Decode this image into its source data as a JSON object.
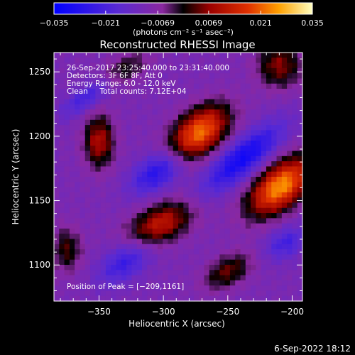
{
  "chart_data": {
    "type": "heatmap",
    "title": "Reconstructed RHESSI Image",
    "xlabel": "Heliocentric X (arcsec)",
    "ylabel": "Heliocentric Y (arcsec)",
    "xlim": [
      -385,
      -192
    ],
    "ylim": [
      1072,
      1265
    ],
    "xticks": [
      -350,
      -300,
      -250,
      -200
    ],
    "yticks": [
      1100,
      1150,
      1200,
      1250
    ],
    "xtick_labels": [
      "−350",
      "−300",
      "−250",
      "−200"
    ],
    "ytick_labels": [
      "1100",
      "1150",
      "1200",
      "1250"
    ],
    "colorbar": {
      "range": [
        -0.035,
        0.035
      ],
      "ticks": [
        -0.035,
        -0.021,
        -0.0069,
        0.0069,
        0.021,
        0.035
      ],
      "tick_labels": [
        "−0.035",
        "−0.021",
        "−0.0069",
        "0.0069",
        "0.021",
        "0.035"
      ],
      "units": "(photons cm⁻² s⁻¹ asec⁻²)"
    },
    "annotations": [
      "26-Sep-2017 23:25:40.000 to 23:31:40.000",
      "Detectors: 3F 6F 8F, Att 0",
      "Energy Range: 6.0 - 12.0 keV",
      "Clean     Total counts: 7.12E+04",
      "Position of Peak = [−209,1161]"
    ],
    "timestamp": "6-Sep-2022 18:12",
    "grid_resolution": 48,
    "sources": [
      {
        "x": -209,
        "y": 1161,
        "amp": 1.0,
        "sx": 20,
        "sy": 11,
        "angle_deg": 40
      },
      {
        "x": -272,
        "y": 1203,
        "amp": 0.92,
        "sx": 18,
        "sy": 11,
        "angle_deg": 40
      },
      {
        "x": -302,
        "y": 1132,
        "amp": 0.62,
        "sx": 18,
        "sy": 10,
        "angle_deg": 25
      },
      {
        "x": -350,
        "y": 1196,
        "amp": 0.55,
        "sx": 8,
        "sy": 14,
        "angle_deg": 0
      },
      {
        "x": -250,
        "y": 1095,
        "amp": 0.4,
        "sx": 14,
        "sy": 8,
        "angle_deg": 30
      },
      {
        "x": -330,
        "y": 1252,
        "amp": 0.3,
        "sx": 14,
        "sy": 7,
        "angle_deg": 30
      },
      {
        "x": -210,
        "y": 1255,
        "amp": 0.45,
        "sx": 12,
        "sy": 12,
        "angle_deg": 0
      },
      {
        "x": -375,
        "y": 1112,
        "amp": 0.35,
        "sx": 8,
        "sy": 12,
        "angle_deg": 0
      },
      {
        "x": -238,
        "y": 1183,
        "amp": -0.62,
        "sx": 26,
        "sy": 9,
        "angle_deg": 40
      },
      {
        "x": -305,
        "y": 1172,
        "amp": -0.5,
        "sx": 16,
        "sy": 9,
        "angle_deg": 35
      },
      {
        "x": -330,
        "y": 1102,
        "amp": -0.4,
        "sx": 16,
        "sy": 9,
        "angle_deg": 35
      },
      {
        "x": -205,
        "y": 1117,
        "amp": -0.35,
        "sx": 12,
        "sy": 8,
        "angle_deg": 30
      },
      {
        "x": -360,
        "y": 1230,
        "amp": -0.35,
        "sx": 16,
        "sy": 6,
        "angle_deg": 35
      }
    ]
  }
}
